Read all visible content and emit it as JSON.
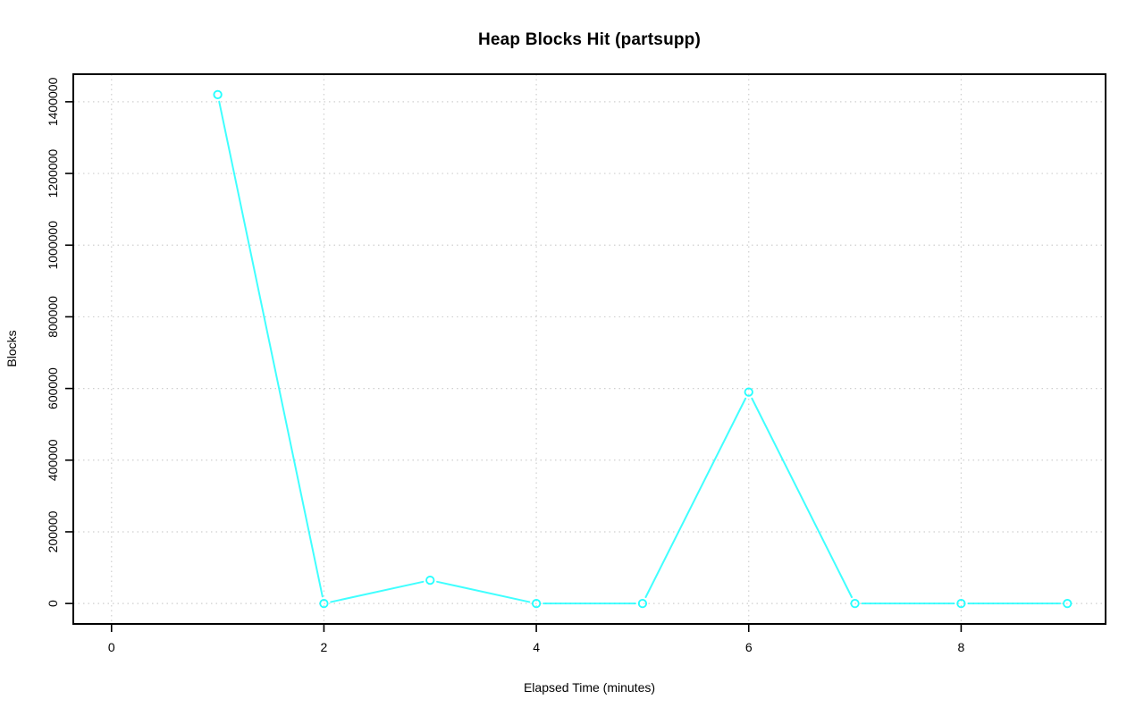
{
  "figure": {
    "background": "#FFFFFF"
  },
  "colors": {
    "series_line": "#00FFFF",
    "grid": "#CFCFCF",
    "axis": "#000000",
    "text": "#000000"
  },
  "chart_data": {
    "type": "line",
    "title": "Heap Blocks Hit (partsupp)",
    "xlabel": "Elapsed Time (minutes)",
    "ylabel": "Blocks",
    "x": [
      1,
      2,
      3,
      4,
      5,
      6,
      7,
      8,
      9
    ],
    "values": [
      1420000,
      0,
      65000,
      0,
      0,
      590000,
      0,
      0,
      0
    ],
    "marker": "open-circle",
    "line_style": "segments-with-gaps-at-markers",
    "grid": "dotted",
    "legend": null,
    "xlim": [
      -0.36,
      9.36
    ],
    "ylim": [
      -57000,
      1477000
    ],
    "x_ticks": [
      0,
      2,
      4,
      6,
      8
    ],
    "x_tick_labels": [
      "0",
      "2",
      "4",
      "6",
      "8"
    ],
    "y_ticks": [
      0,
      200000,
      400000,
      600000,
      800000,
      1000000,
      1200000,
      1400000
    ],
    "y_tick_labels": [
      "0",
      "200000",
      "400000",
      "600000",
      "800000",
      "1000000",
      "1200000",
      "1400000"
    ]
  }
}
